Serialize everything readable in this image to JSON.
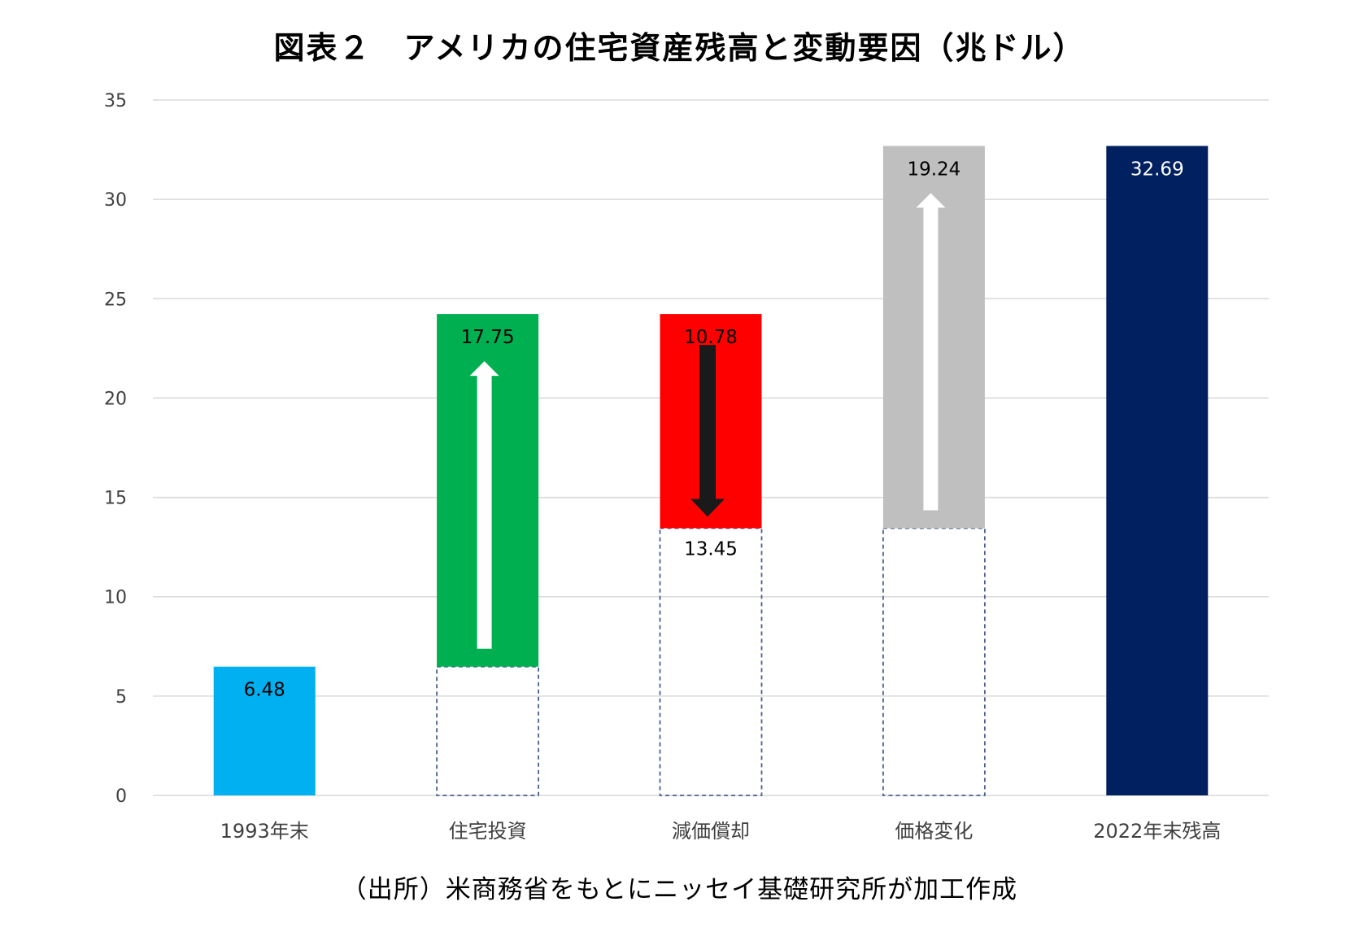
{
  "title": "図表２　アメリカの住宅資産残高と変動要因（兆ドル）",
  "source": "（出所）米商務省をもとにニッセイ基礎研究所が加工作成",
  "chart_data": {
    "type": "bar",
    "subtype": "waterfall",
    "title": "図表２　アメリカの住宅資産残高と変動要因（兆ドル）",
    "xlabel": "",
    "ylabel": "",
    "ylim": [
      0,
      35
    ],
    "yticks": [
      "0",
      "5",
      "10",
      "15",
      "20",
      "25",
      "30",
      "35"
    ],
    "grid": true,
    "legend": "none",
    "categories": [
      "1993年末",
      "住宅投資",
      "減価償却",
      "価格変化",
      "2022年末残高"
    ],
    "bars": [
      {
        "label": "6.48",
        "value": 6.48,
        "base": 0,
        "top": 6.48,
        "direction": "total",
        "color": "#00b0f0",
        "label_color": "#000000"
      },
      {
        "label": "17.75",
        "value": 17.75,
        "base": 6.48,
        "top": 24.23,
        "direction": "up",
        "color": "#00b050",
        "label_color": "#000000"
      },
      {
        "label": "10.78",
        "value": 10.78,
        "base": 13.45,
        "top": 24.23,
        "direction": "down",
        "color": "#ff0000",
        "label_color": "#000000"
      },
      {
        "label": "19.24",
        "value": 19.24,
        "base": 13.45,
        "top": 32.69,
        "direction": "up",
        "color": "#bfbfbf",
        "label_color": "#000000"
      },
      {
        "label": "32.69",
        "value": 32.69,
        "base": 0,
        "top": 32.69,
        "direction": "total",
        "color": "#002060",
        "label_color": "#ffffff"
      }
    ],
    "base_labels": [
      {
        "category_index": 2,
        "label": "13.45",
        "value": 13.45
      }
    ]
  }
}
